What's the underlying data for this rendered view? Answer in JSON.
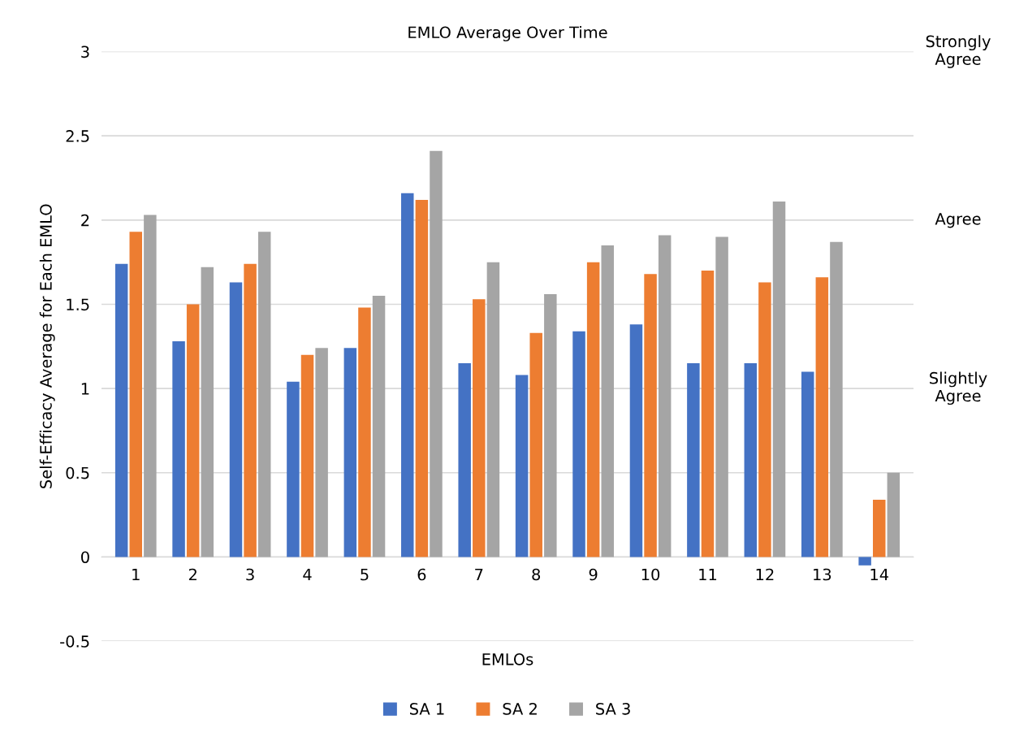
{
  "chart_data": {
    "type": "bar",
    "title": "EMLO Average Over Time",
    "xlabel": "EMLOs",
    "ylabel": "Self-Efficacy Average for Each EMLO",
    "categories": [
      "1",
      "2",
      "3",
      "4",
      "5",
      "6",
      "7",
      "8",
      "9",
      "10",
      "11",
      "12",
      "13",
      "14"
    ],
    "series": [
      {
        "name": "SA 1",
        "color": "#4472c4",
        "values": [
          1.74,
          1.28,
          1.63,
          1.04,
          1.24,
          2.16,
          1.15,
          1.08,
          1.34,
          1.38,
          1.15,
          1.15,
          1.1,
          -0.05
        ]
      },
      {
        "name": "SA 2",
        "color": "#ed7d31",
        "values": [
          1.93,
          1.5,
          1.74,
          1.2,
          1.48,
          2.12,
          1.53,
          1.33,
          1.75,
          1.68,
          1.7,
          1.63,
          1.66,
          0.34
        ]
      },
      {
        "name": "SA 3",
        "color": "#a5a5a5",
        "values": [
          2.03,
          1.72,
          1.93,
          1.24,
          1.55,
          2.41,
          1.75,
          1.56,
          1.85,
          1.91,
          1.9,
          2.11,
          1.87,
          0.5
        ]
      }
    ],
    "ylim": [
      -0.5,
      3
    ],
    "yticks": [
      -0.5,
      0,
      0.5,
      1,
      1.5,
      2,
      2.5,
      3
    ],
    "annotations": [
      "Strongly\nAgree",
      "Agree",
      "Slightly\nAgree"
    ],
    "grid": "y",
    "legend": "bottom"
  }
}
